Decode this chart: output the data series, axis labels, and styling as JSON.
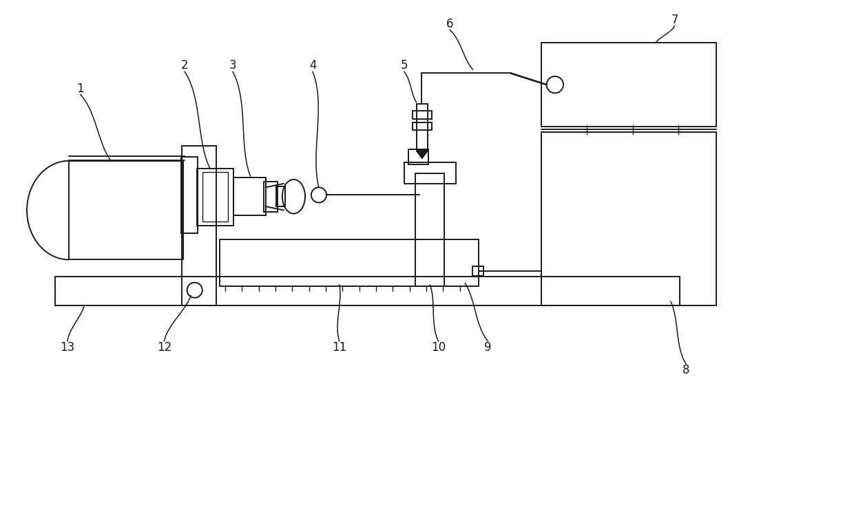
{
  "background_color": "#ffffff",
  "line_color": "#1a1a1a",
  "lw": 1.4,
  "lw_thin": 1.0,
  "fig_width": 12.4,
  "fig_height": 7.66,
  "label_fontsize": 12,
  "label_color": "#1a1a1a"
}
